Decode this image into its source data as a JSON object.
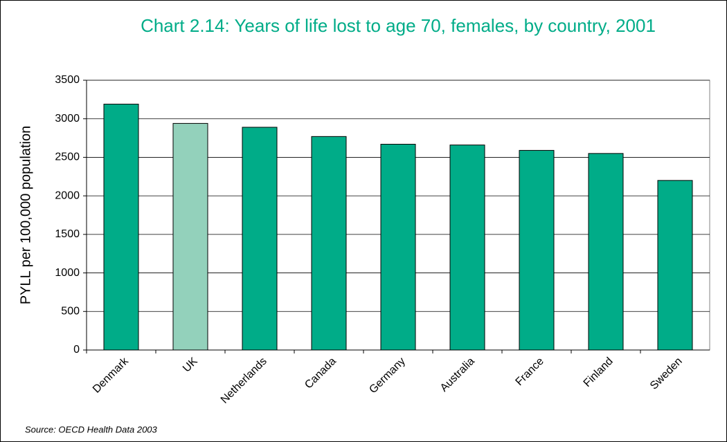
{
  "chart_data": {
    "type": "bar",
    "title": "Chart 2.14: Years of life lost to age 70, females, by country, 2001",
    "ylabel": "PYLL per 100,000 population",
    "source": "Source: OECD Health Data 2003",
    "categories": [
      "Denmark",
      "UK",
      "Netherlands",
      "Canada",
      "Germany",
      "Australia",
      "France",
      "Finland",
      "Sweden"
    ],
    "values": [
      3190,
      2940,
      2890,
      2770,
      2670,
      2660,
      2590,
      2550,
      2200
    ],
    "colors": [
      "#00ac88",
      "#93d1bb",
      "#00ac88",
      "#00ac88",
      "#00ac88",
      "#00ac88",
      "#00ac88",
      "#00ac88",
      "#00ac88"
    ],
    "ylim": [
      0,
      3500
    ],
    "yticks": [
      0,
      500,
      1000,
      1500,
      2000,
      2500,
      3000,
      3500
    ],
    "grid": true
  }
}
